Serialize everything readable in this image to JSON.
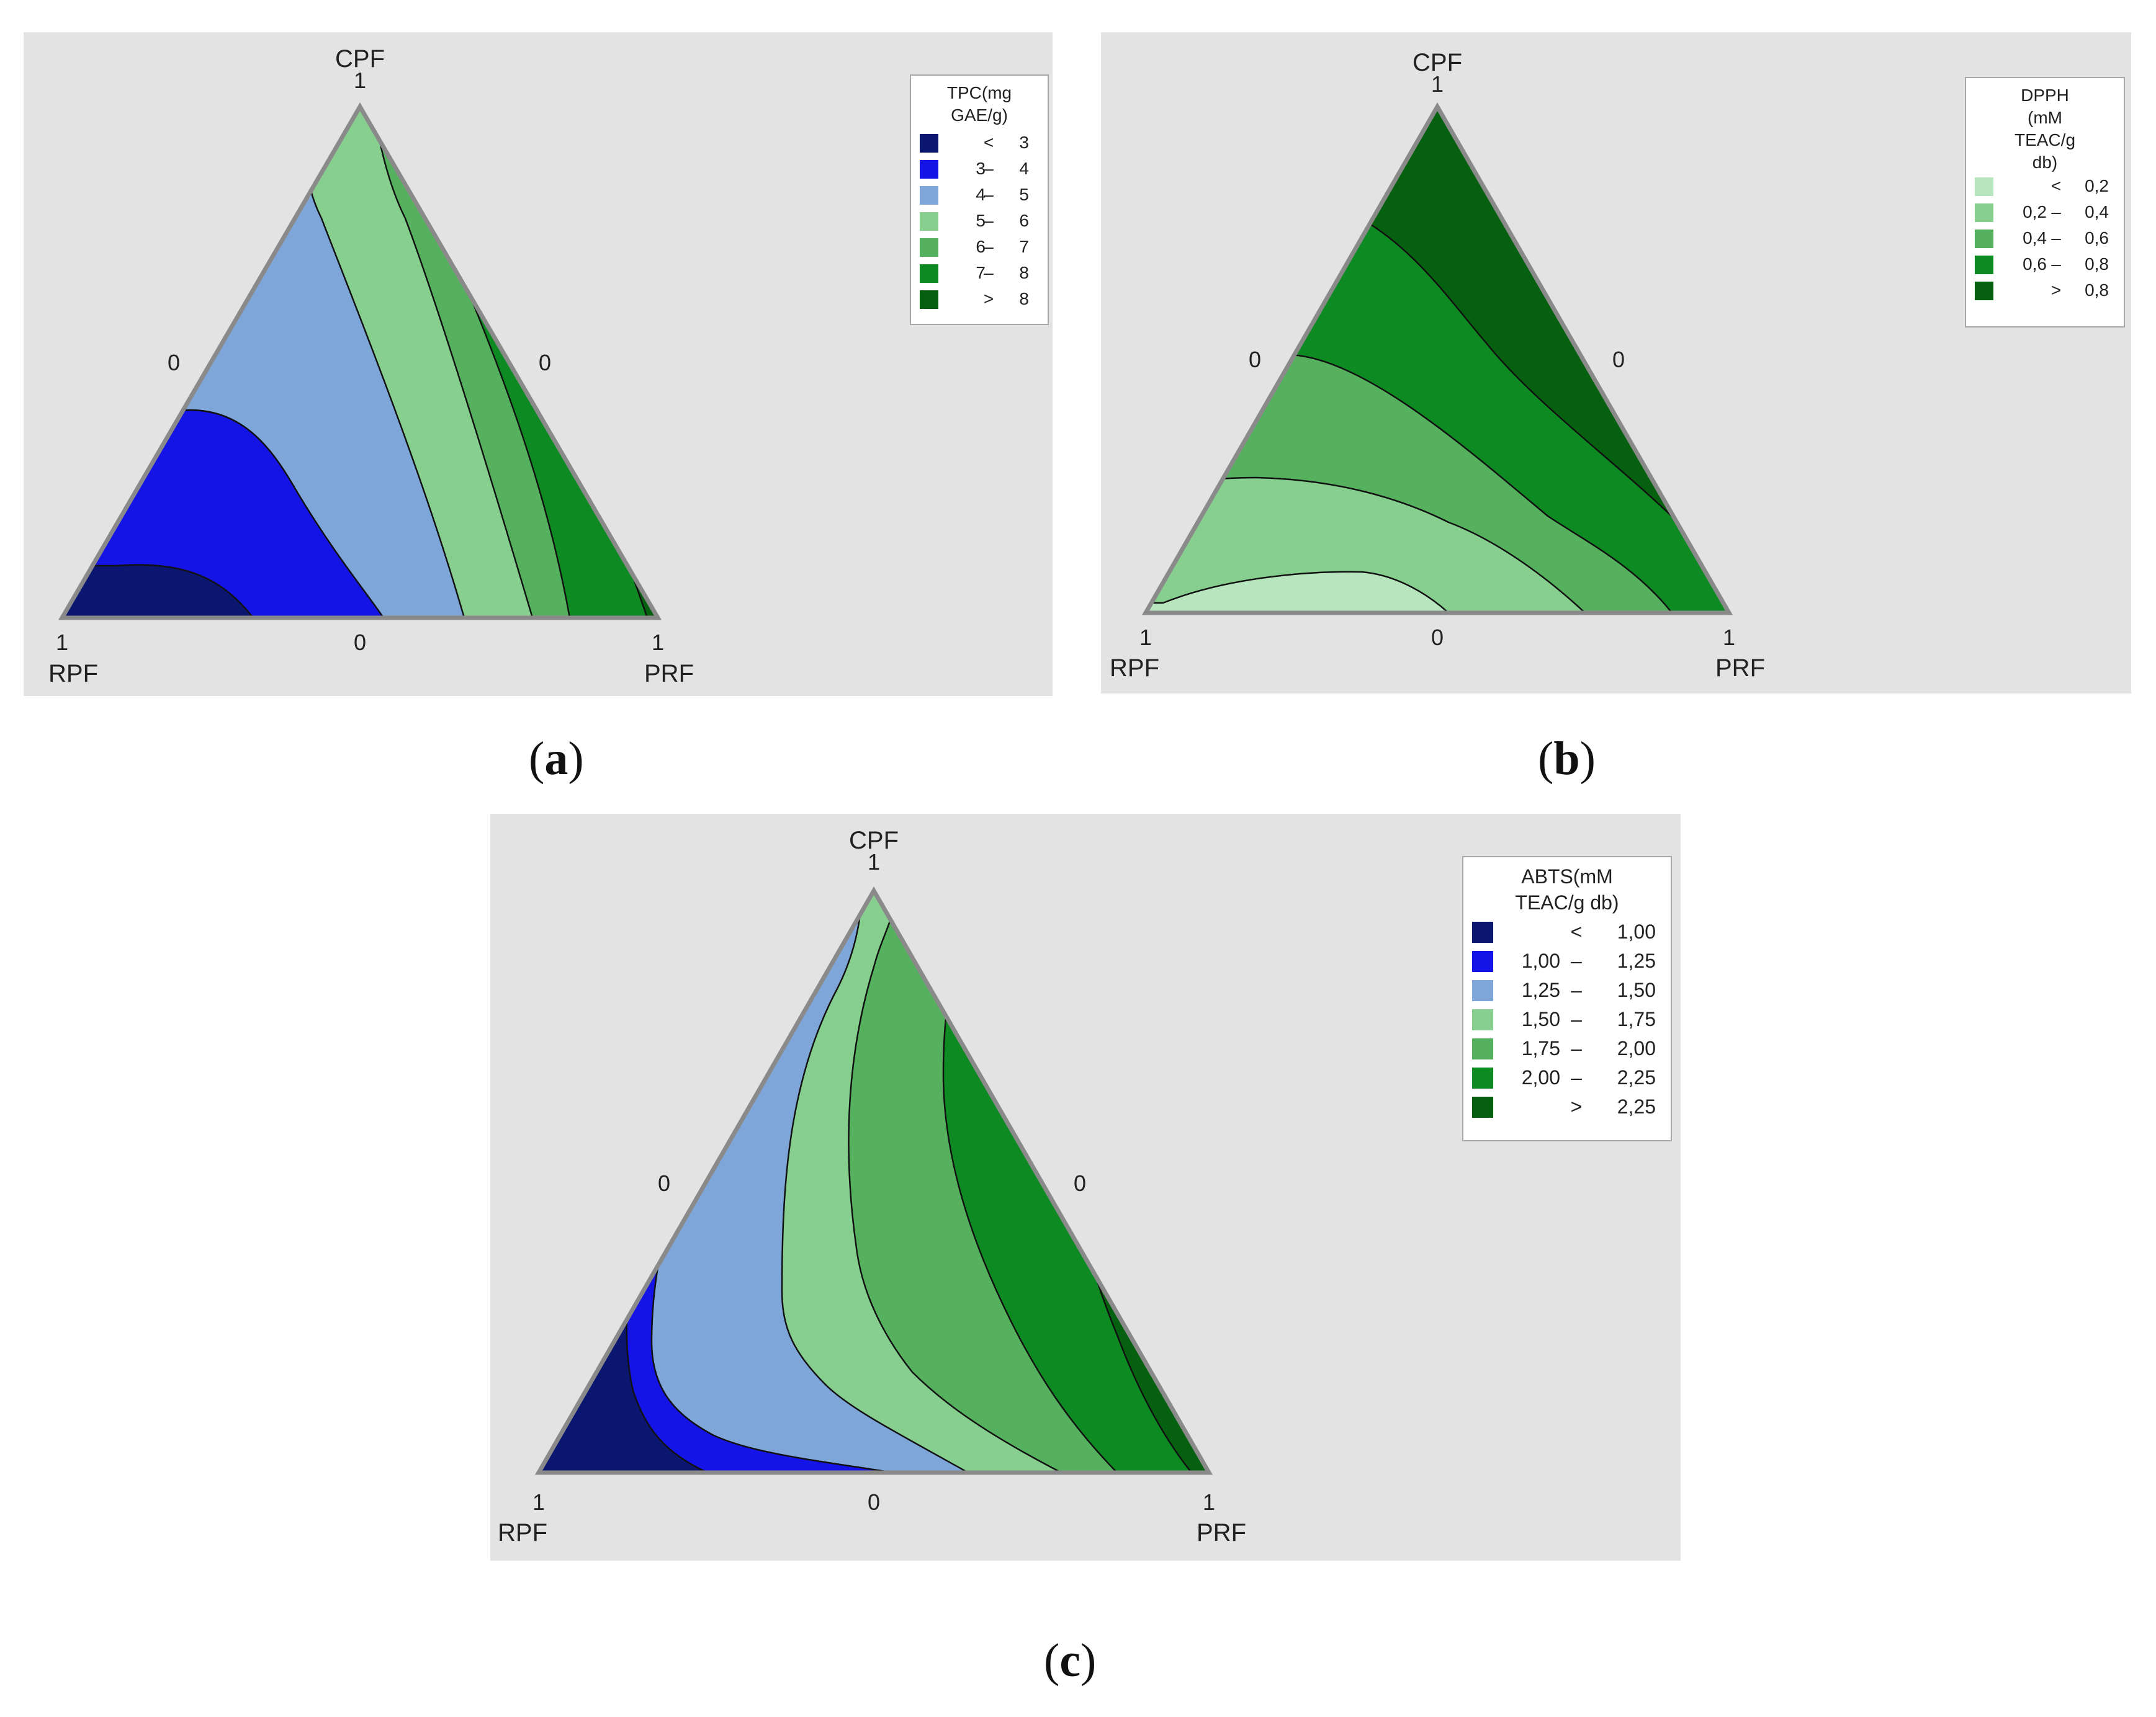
{
  "chart_data": [
    {
      "panel": "(a)",
      "type": "ternary-contour",
      "vertices": {
        "top": "CPF",
        "left": "RPF",
        "right": "PRF"
      },
      "vertex_ticks": {
        "top": "1",
        "left": "1",
        "right": "1"
      },
      "edge_ticks": {
        "left_edge": "0",
        "right_edge": "0",
        "bottom_edge": "0"
      },
      "legend_title": "TPC(mg GAE/g)",
      "legend_title_lines": [
        "TPC(mg",
        "GAE/g)"
      ],
      "bands": [
        {
          "lo": "",
          "op": "<",
          "hi": "3",
          "color": "#0a1670"
        },
        {
          "lo": "3",
          "op": "–",
          "hi": "4",
          "color": "#1414e6"
        },
        {
          "lo": "4",
          "op": "–",
          "hi": "5",
          "color": "#7fa6d9"
        },
        {
          "lo": "5",
          "op": "–",
          "hi": "6",
          "color": "#86cf8f"
        },
        {
          "lo": "6",
          "op": "–",
          "hi": "7",
          "color": "#56b15f"
        },
        {
          "lo": "7",
          "op": "–",
          "hi": "8",
          "color": "#0e8a23"
        },
        {
          "lo": "",
          "op": ">",
          "hi": "8",
          "color": "#05610f"
        }
      ]
    },
    {
      "panel": "(b)",
      "type": "ternary-contour",
      "vertices": {
        "top": "CPF",
        "left": "RPF",
        "right": "PRF"
      },
      "vertex_ticks": {
        "top": "1",
        "left": "1",
        "right": "1"
      },
      "edge_ticks": {
        "left_edge": "0",
        "right_edge": "0",
        "bottom_edge": "0"
      },
      "legend_title": "DPPH (mM TEAC/g db)",
      "legend_title_lines": [
        "DPPH",
        "(mM",
        "TEAC/g",
        "db)"
      ],
      "bands": [
        {
          "lo": "",
          "op": "<",
          "hi": "0,2",
          "color": "#b7e6be"
        },
        {
          "lo": "0,2",
          "op": "–",
          "hi": "0,4",
          "color": "#86cf8f"
        },
        {
          "lo": "0,4",
          "op": "–",
          "hi": "0,6",
          "color": "#56b15f"
        },
        {
          "lo": "0,6",
          "op": "–",
          "hi": "0,8",
          "color": "#0e8a23"
        },
        {
          "lo": "",
          "op": ">",
          "hi": "0,8",
          "color": "#05610f"
        }
      ]
    },
    {
      "panel": "(c)",
      "type": "ternary-contour",
      "vertices": {
        "top": "CPF",
        "left": "RPF",
        "right": "PRF"
      },
      "vertex_ticks": {
        "top": "1",
        "left": "1",
        "right": "1"
      },
      "edge_ticks": {
        "left_edge": "0",
        "right_edge": "0",
        "bottom_edge": "0"
      },
      "legend_title": "ABTS(mM TEAC/g db)",
      "legend_title_lines": [
        "ABTS(mM",
        "TEAC/g db)"
      ],
      "bands": [
        {
          "lo": "",
          "op": "<",
          "hi": "1,00",
          "color": "#0a1670"
        },
        {
          "lo": "1,00",
          "op": "–",
          "hi": "1,25",
          "color": "#1414e6"
        },
        {
          "lo": "1,25",
          "op": "–",
          "hi": "1,50",
          "color": "#7fa6d9"
        },
        {
          "lo": "1,50",
          "op": "–",
          "hi": "1,75",
          "color": "#86cf8f"
        },
        {
          "lo": "1,75",
          "op": "–",
          "hi": "2,00",
          "color": "#56b15f"
        },
        {
          "lo": "2,00",
          "op": "–",
          "hi": "2,25",
          "color": "#0e8a23"
        },
        {
          "lo": "",
          "op": ">",
          "hi": "2,25",
          "color": "#05610f"
        }
      ]
    }
  ],
  "captions": {
    "a": "a",
    "b": "b",
    "c": "c"
  }
}
